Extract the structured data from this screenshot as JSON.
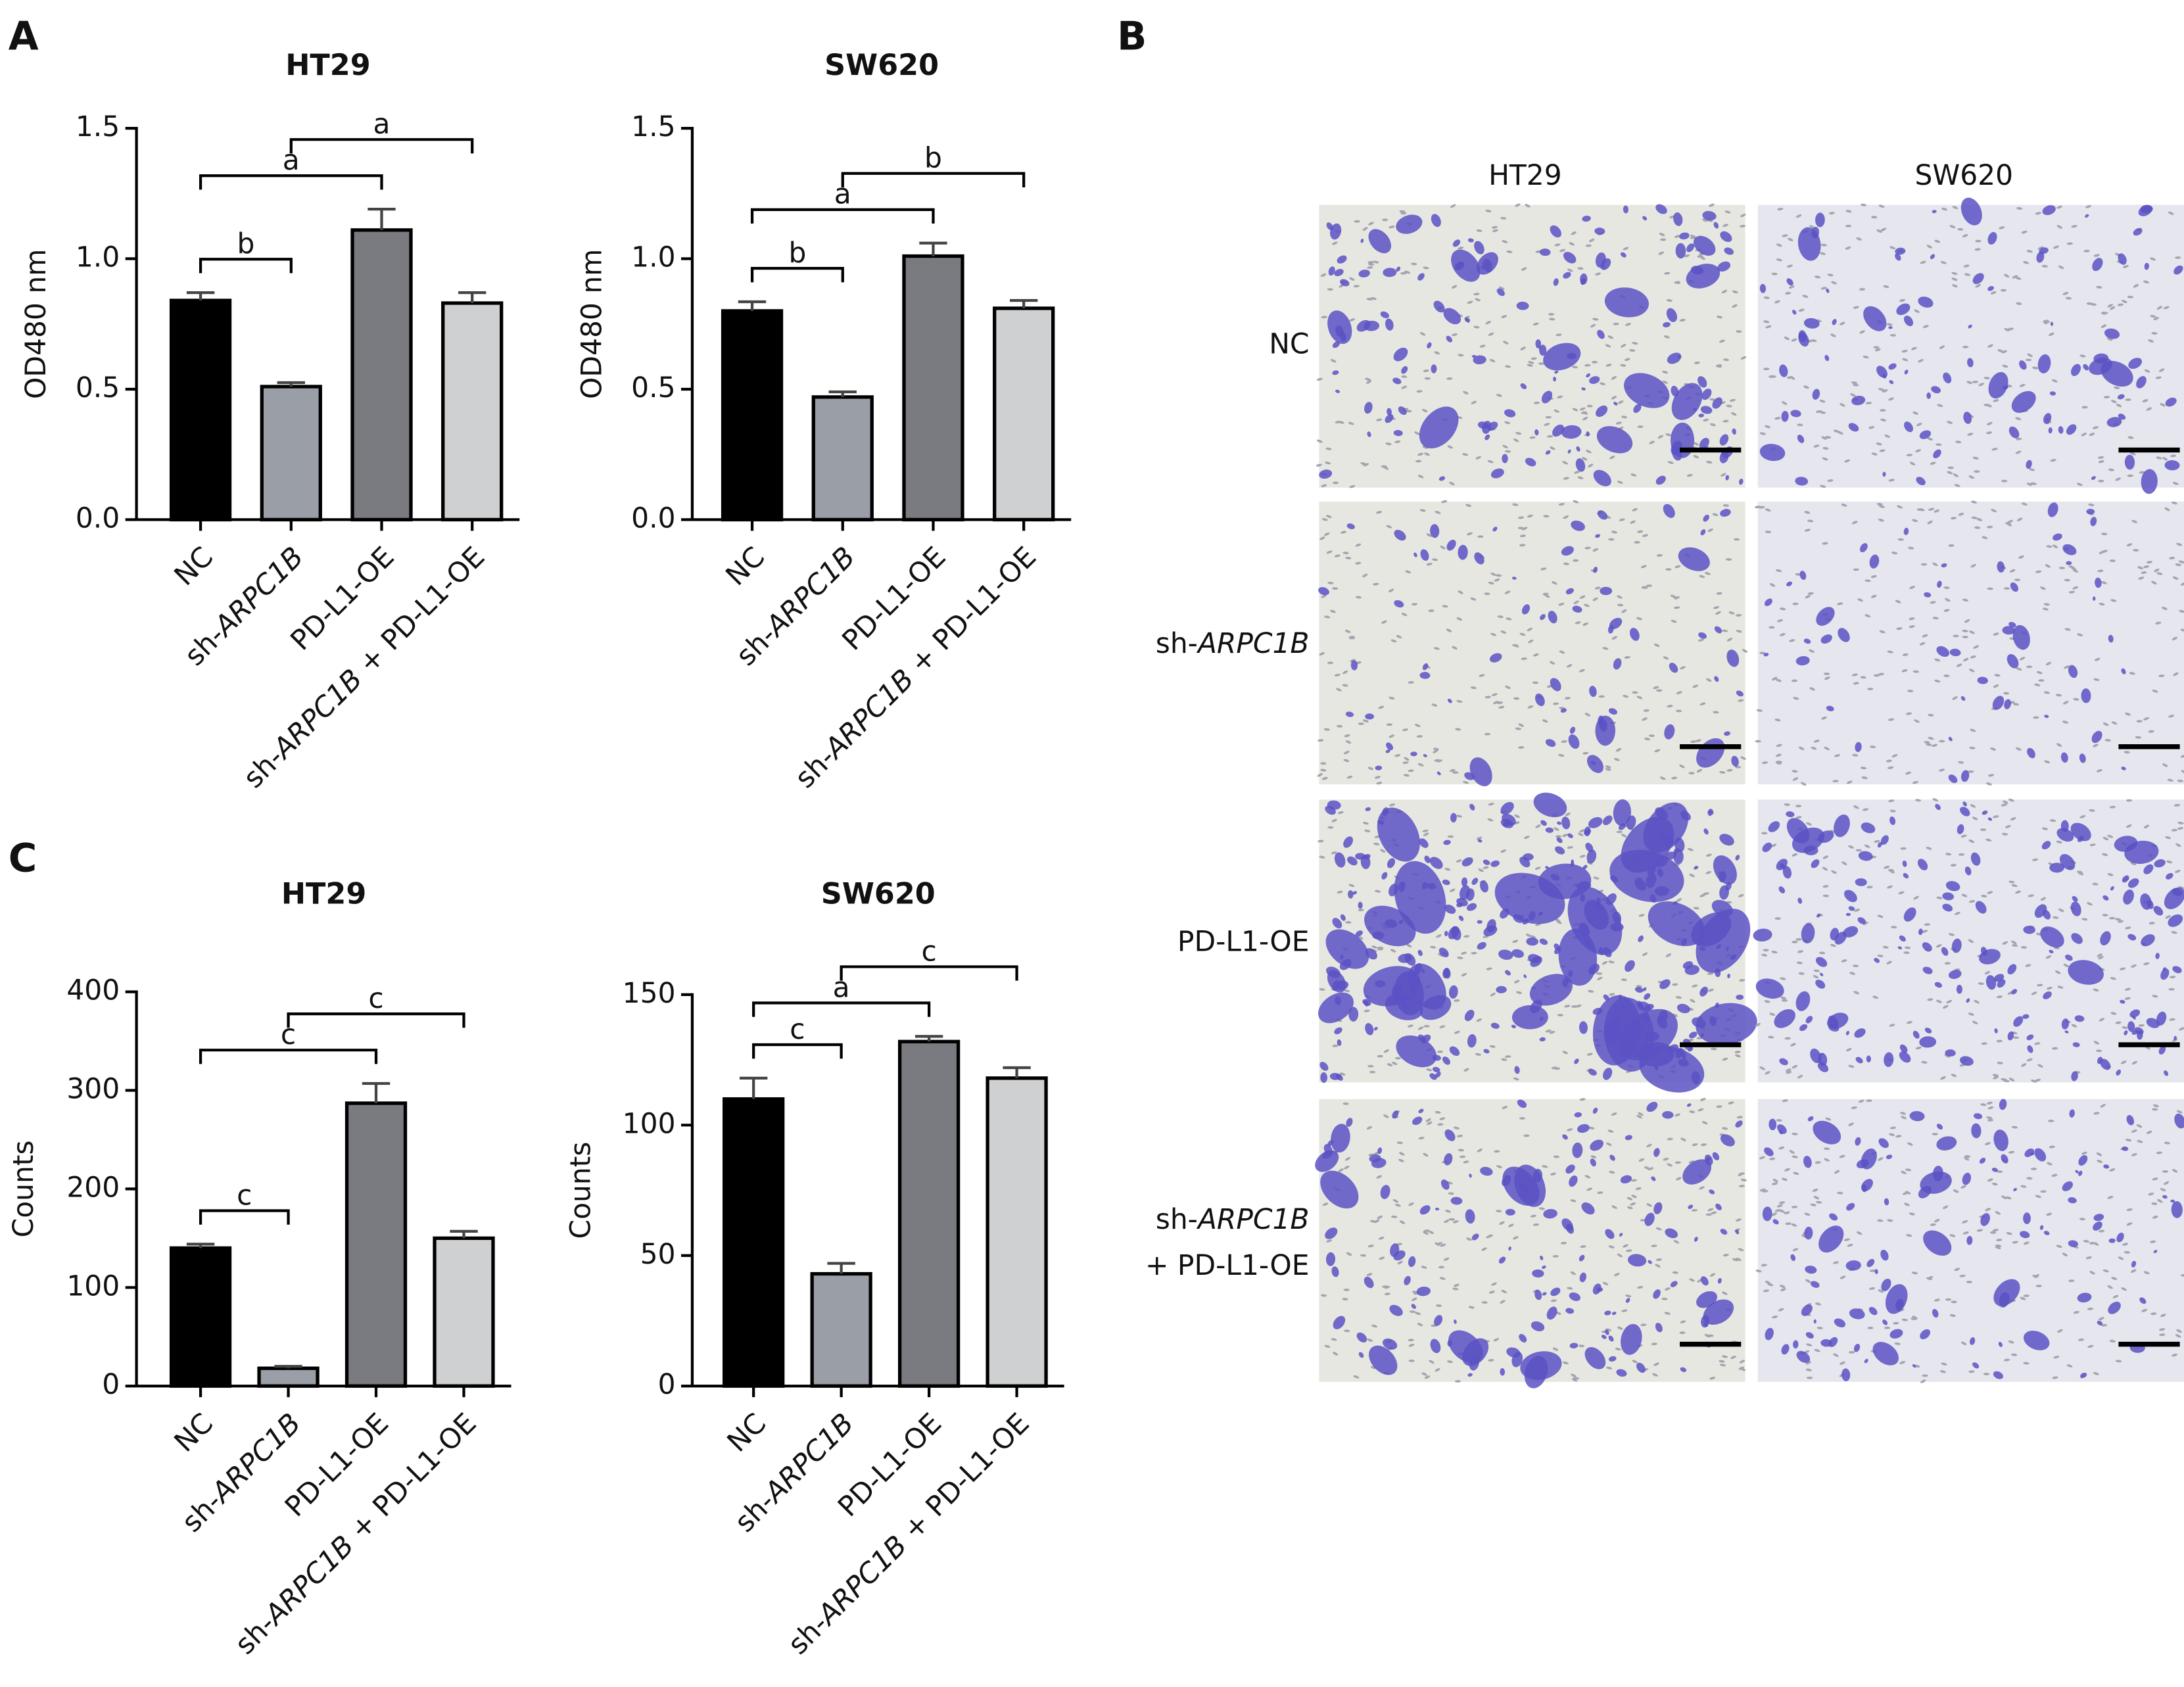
{
  "panel_labels": [
    "A",
    "B",
    "C"
  ],
  "chart_data": [
    {
      "type": "bar",
      "title": "HT29",
      "y_label": "OD480 nm",
      "categories": [
        "NC",
        "sh-ARPC1B",
        "PD-L1-OE",
        "sh-ARPC1B + PD-L1-OE"
      ],
      "values": [
        0.84,
        0.51,
        1.11,
        0.83
      ],
      "errors": [
        0.03,
        0.015,
        0.08,
        0.04
      ],
      "colors": [
        "#000000",
        "#9a9ea6",
        "#7a7b80",
        "#cfd0d2"
      ],
      "ylim": [
        0,
        1.5
      ],
      "yticks": [
        {
          "value": 0,
          "label": "0.0"
        },
        0.5,
        {
          "value": 1,
          "label": "1.0"
        },
        1.5
      ],
      "annotations": [
        {
          "from": 0,
          "to": 1,
          "label": "b"
        },
        {
          "from": 0,
          "to": 2,
          "label": "a"
        },
        {
          "from": 1,
          "to": 3,
          "label": "a"
        }
      ]
    },
    {
      "type": "bar",
      "title": "SW620",
      "y_label": "OD480 nm",
      "categories": [
        "NC",
        "sh-ARPC1B",
        "PD-L1-OE",
        "sh-ARPC1B + PD-L1-OE"
      ],
      "values": [
        0.8,
        0.47,
        1.01,
        0.81
      ],
      "errors": [
        0.035,
        0.02,
        0.05,
        0.03
      ],
      "colors": [
        "#000000",
        "#9a9ea6",
        "#7a7b80",
        "#cfd0d2"
      ],
      "ylim": [
        0,
        1.5
      ],
      "yticks": [
        {
          "value": 0,
          "label": "0.0"
        },
        0.5,
        {
          "value": 1,
          "label": "1.0"
        },
        1.5
      ],
      "annotations": [
        {
          "from": 0,
          "to": 1,
          "label": "b"
        },
        {
          "from": 0,
          "to": 2,
          "label": "a"
        },
        {
          "from": 1,
          "to": 3,
          "label": "b"
        }
      ]
    },
    {
      "type": "bar",
      "title": "HT29",
      "y_label": "Counts",
      "categories": [
        "NC",
        "sh-ARPC1B",
        "PD-L1-OE",
        "sh-ARPC1B + PD-L1-OE"
      ],
      "values": [
        140,
        18,
        287,
        150
      ],
      "errors": [
        4,
        2,
        20,
        7
      ],
      "colors": [
        "#000000",
        "#9a9ea6",
        "#7a7b80",
        "#cfd0d2"
      ],
      "ylim": [
        0,
        400
      ],
      "yticks": [
        0,
        100,
        200,
        300,
        400
      ],
      "annotations": [
        {
          "from": 0,
          "to": 1,
          "label": "c"
        },
        {
          "from": 0,
          "to": 2,
          "label": "c"
        },
        {
          "from": 1,
          "to": 3,
          "label": "c"
        }
      ]
    },
    {
      "type": "bar",
      "title": "SW620",
      "y_label": "Counts",
      "categories": [
        "NC",
        "sh-ARPC1B",
        "PD-L1-OE",
        "sh-ARPC1B + PD-L1-OE"
      ],
      "values": [
        110,
        43,
        132,
        118
      ],
      "errors": [
        8,
        4,
        2,
        4
      ],
      "colors": [
        "#000000",
        "#9a9ea6",
        "#7a7b80",
        "#cfd0d2"
      ],
      "ylim": [
        0,
        150
      ],
      "yticks": [
        0,
        50,
        100,
        150
      ],
      "annotations": [
        {
          "from": 0,
          "to": 1,
          "label": "c"
        },
        {
          "from": 0,
          "to": 2,
          "label": "a"
        },
        {
          "from": 1,
          "to": 3,
          "label": "c"
        }
      ]
    }
  ],
  "image_grid": {
    "columns": [
      "HT29",
      "SW620"
    ],
    "rows": [
      [
        "NC"
      ],
      [
        "sh-ARPC1B"
      ],
      [
        "PD-L1-OE"
      ],
      [
        "sh-ARPC1B",
        "+ PD-L1-OE"
      ]
    ]
  }
}
